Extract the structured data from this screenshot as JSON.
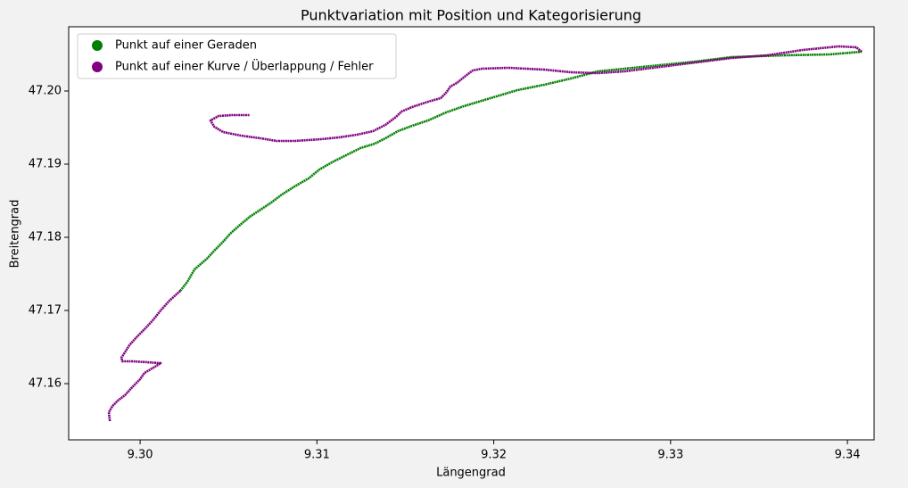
{
  "chart_data": {
    "type": "line",
    "title": "Punktvariation mit Position und Kategorisierung",
    "x_label": "Längengrad",
    "y_label": "Breitengrad",
    "xlim": [
      9.29596,
      9.34151
    ],
    "ylim": [
      47.15232,
      47.20878
    ],
    "xticks": [
      {
        "value": 9.3,
        "label": "9.30"
      },
      9.31,
      9.32,
      9.33,
      9.34
    ],
    "yticks": [
      47.16,
      47.17,
      47.18,
      47.19,
      {
        "value": 47.2,
        "label": "47.20"
      }
    ],
    "grid": false,
    "legend": "upper-left",
    "series": [
      {
        "name": "Punkt auf einer Geraden",
        "color": "#008000",
        "x": [
          9.30227,
          9.30267,
          9.30308,
          9.30348,
          9.30378,
          9.30419,
          9.30469,
          9.30509,
          9.3056,
          9.3062,
          9.30681,
          9.30742,
          9.30802,
          9.30873,
          9.30953,
          9.31014,
          9.31084,
          9.31165,
          9.31246,
          9.31327,
          9.31387,
          9.31458,
          9.31538,
          9.31629,
          9.3173,
          9.31831,
          9.31982,
          9.32134,
          9.32285,
          9.32436,
          9.32588,
          9.32739,
          9.32941,
          9.33142,
          9.33344,
          9.33647,
          9.33899,
          9.34081
        ],
        "y": [
          47.17268,
          47.1739,
          47.17561,
          47.17646,
          47.17707,
          47.17817,
          47.17939,
          47.18049,
          47.18159,
          47.1828,
          47.18378,
          47.18476,
          47.18585,
          47.18695,
          47.18805,
          47.18927,
          47.19024,
          47.19122,
          47.1922,
          47.1928,
          47.19354,
          47.19451,
          47.19524,
          47.19598,
          47.19707,
          47.19793,
          47.19902,
          47.20012,
          47.20085,
          47.20171,
          47.20268,
          47.20305,
          47.20354,
          47.20402,
          47.20463,
          47.20488,
          47.205,
          47.20537
        ]
      },
      {
        "name": "Punkt auf einer Kurve / Überlappung / Fehler",
        "color": "#800080",
        "x": [
          9.29829,
          9.29823,
          9.29844,
          9.29874,
          9.29914,
          9.29955,
          9.3,
          9.30025,
          9.30076,
          9.30116,
          9.3004,
          9.29955,
          9.29899,
          9.29894,
          9.29914,
          9.29939,
          9.2998,
          9.3003,
          9.30076,
          9.30116,
          9.30166,
          9.30227,
          null,
          9.34081,
          9.3405,
          9.3395,
          9.33748,
          9.33546,
          9.33344,
          9.33142,
          9.32941,
          9.32739,
          9.32588,
          9.32436,
          9.32285,
          9.32083,
          9.31932,
          9.31881,
          9.31841,
          9.31791,
          9.31755,
          9.3173,
          9.317,
          9.31629,
          9.31538,
          9.31478,
          9.31448,
          9.31387,
          9.31317,
          9.31226,
          9.31125,
          9.31024,
          9.30873,
          9.30772,
          9.30681,
          9.3057,
          9.30469,
          9.30419,
          9.30398,
          9.30444,
          9.3052,
          9.3062
        ],
        "y": [
          47.15488,
          47.1561,
          47.15695,
          47.15768,
          47.15841,
          47.15951,
          47.16061,
          47.16146,
          47.1622,
          47.1628,
          47.16293,
          47.16305,
          47.16305,
          47.16354,
          47.16427,
          47.16524,
          47.16634,
          47.16756,
          47.16878,
          47.17,
          47.17134,
          47.17268,
          null,
          47.20537,
          47.20598,
          47.2061,
          47.20561,
          47.20488,
          47.20451,
          47.2039,
          47.20329,
          47.20268,
          47.20244,
          47.20256,
          47.20293,
          47.20317,
          47.20305,
          47.2028,
          47.20207,
          47.2011,
          47.20061,
          47.19976,
          47.19902,
          47.19854,
          47.1978,
          47.1972,
          47.19646,
          47.19537,
          47.19451,
          47.19402,
          47.19366,
          47.19341,
          47.19317,
          47.19317,
          47.19354,
          47.1939,
          47.19439,
          47.19512,
          47.19598,
          47.19659,
          47.19671,
          47.19671
        ]
      }
    ]
  }
}
